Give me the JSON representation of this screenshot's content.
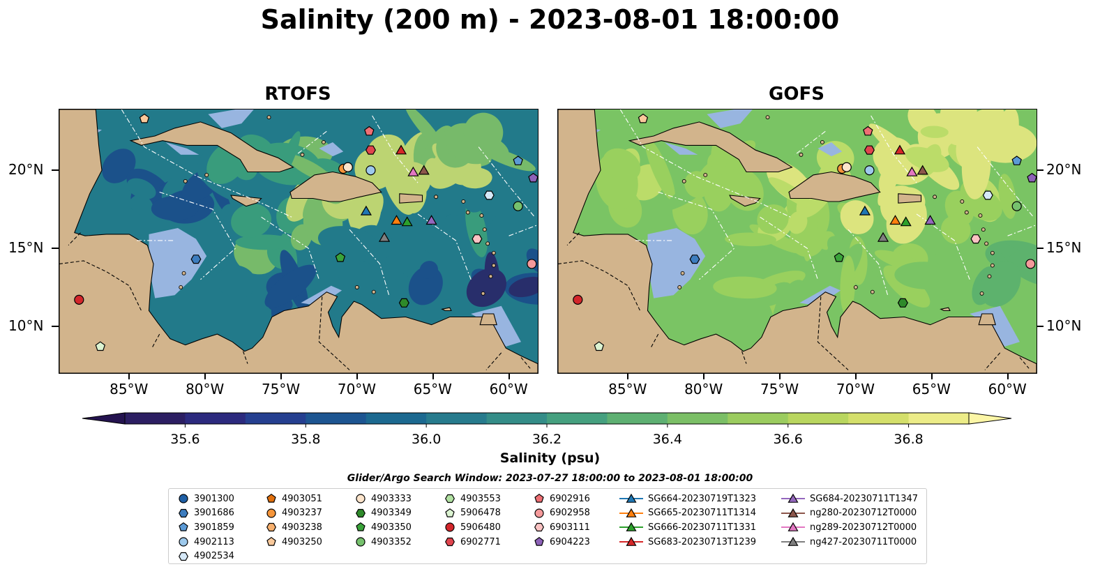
{
  "figure": {
    "title": "Salinity (200 m) - 2023-08-01 18:00:00",
    "window_text": "Glider/Argo Search Window: 2023-07-27 18:00:00 to 2023-08-01 18:00:00"
  },
  "panels": [
    {
      "title": "RTOFS",
      "palette": [
        "#2a2166",
        "#1a4a8a",
        "#227a8a",
        "#3ea27a",
        "#86c665",
        "#d8e46e"
      ]
    },
    {
      "title": "GOFS",
      "palette": [
        "#3f8f82",
        "#58b06f",
        "#7ac464",
        "#9fd35e",
        "#c7e16b",
        "#eeea83"
      ]
    }
  ],
  "map_extent": {
    "lon": [
      -89.6,
      -58.1
    ],
    "lat": [
      7,
      23.9
    ]
  },
  "axes": {
    "lon_ticks": [
      {
        "value": -85,
        "label": "85°W"
      },
      {
        "value": -80,
        "label": "80°W"
      },
      {
        "value": -75,
        "label": "75°W"
      },
      {
        "value": -70,
        "label": "70°W"
      },
      {
        "value": -65,
        "label": "65°W"
      },
      {
        "value": -60,
        "label": "60°W"
      }
    ],
    "lat_ticks": [
      {
        "value": 20,
        "label": "20°N"
      },
      {
        "value": 15,
        "label": "15°N"
      },
      {
        "value": 10,
        "label": "10°N"
      }
    ]
  },
  "colorbar": {
    "label": "Salinity (psu)",
    "vmin": 35.5,
    "vmax": 36.9,
    "step": 0.1,
    "ticks": [
      35.6,
      35.8,
      36.0,
      36.2,
      36.4,
      36.6,
      36.8
    ],
    "tick_labels": [
      "35.6",
      "35.8",
      "36.0",
      "36.2",
      "36.4",
      "36.6",
      "36.8"
    ],
    "colors": [
      "#2c1e62",
      "#2c2a7e",
      "#253f90",
      "#1d5591",
      "#1c6990",
      "#277b8d",
      "#348d88",
      "#45a07f",
      "#5eb072",
      "#7bbf66",
      "#9bcc5f",
      "#b9d65f",
      "#d4df6b",
      "#ecec88"
    ],
    "under_color": "#24134f",
    "over_color": "#fcf6a6"
  },
  "colors": {
    "land": "#d2b48c",
    "shelf": "#98b5e0",
    "deep": "#2a2166"
  },
  "legend": {
    "items": [
      {
        "label": "3901300",
        "marker": "circle",
        "color": "#1f5fa5"
      },
      {
        "label": "3901686",
        "marker": "hexagon",
        "color": "#3d7dbf"
      },
      {
        "label": "3901859",
        "marker": "pentagon",
        "color": "#5b9ad6"
      },
      {
        "label": "4902113",
        "marker": "circle",
        "color": "#9dc9ec"
      },
      {
        "label": "4902534",
        "marker": "hexagon",
        "color": "#d6e9f8"
      },
      {
        "label": "4903051",
        "marker": "pentagon",
        "color": "#e1700e"
      },
      {
        "label": "4903237",
        "marker": "circle",
        "color": "#f5953a"
      },
      {
        "label": "4903238",
        "marker": "hexagon",
        "color": "#f7b06e"
      },
      {
        "label": "4903250",
        "marker": "pentagon",
        "color": "#f9c99b"
      },
      {
        "label": "4903333",
        "marker": "circle",
        "color": "#fce4cb"
      },
      {
        "label": "4903349",
        "marker": "hexagon",
        "color": "#2e8a2a"
      },
      {
        "label": "4903350",
        "marker": "pentagon",
        "color": "#3aa33a"
      },
      {
        "label": "4903352",
        "marker": "circle",
        "color": "#76c16d"
      },
      {
        "label": "4903553",
        "marker": "hexagon",
        "color": "#b1e1a2"
      },
      {
        "label": "5906478",
        "marker": "pentagon",
        "color": "#dcf4d2"
      },
      {
        "label": "5906480",
        "marker": "circle",
        "color": "#d3262b"
      },
      {
        "label": "6902771",
        "marker": "hexagon",
        "color": "#e0454e"
      },
      {
        "label": "6902916",
        "marker": "pentagon",
        "color": "#ee6f74"
      },
      {
        "label": "6902958",
        "marker": "circle",
        "color": "#f59a9b"
      },
      {
        "label": "6903111",
        "marker": "hexagon",
        "color": "#fac3c3"
      },
      {
        "label": "6904223",
        "marker": "pentagon",
        "color": "#8d62b8"
      },
      {
        "label": "SG664-20230719T1323",
        "marker": "triangle",
        "color": "#1f77b4"
      },
      {
        "label": "SG665-20230711T1314",
        "marker": "triangle",
        "color": "#ff7f0e"
      },
      {
        "label": "SG666-20230711T1331",
        "marker": "triangle",
        "color": "#2ca02c"
      },
      {
        "label": "SG683-20230713T1239",
        "marker": "triangle",
        "color": "#d62728"
      },
      {
        "label": "SG684-20230711T1347",
        "marker": "triangle",
        "color": "#9467bd"
      },
      {
        "label": "ng280-20230712T0000",
        "marker": "triangle",
        "color": "#8c564b"
      },
      {
        "label": "ng289-20230712T0000",
        "marker": "triangle",
        "color": "#e377c2"
      },
      {
        "label": "ng427-20230711T0000",
        "marker": "triangle",
        "color": "#7f7f7f"
      }
    ]
  },
  "observations": [
    {
      "id": "4903250",
      "lon": -84.0,
      "lat": 23.3
    },
    {
      "id": "6902916",
      "lon": -69.2,
      "lat": 22.5
    },
    {
      "id": "6902771",
      "lon": -69.1,
      "lat": 21.3
    },
    {
      "id": "SG683-20230713T1239",
      "lon": -67.1,
      "lat": 21.3
    },
    {
      "id": "4903237",
      "lon": -70.9,
      "lat": 20.1
    },
    {
      "id": "4903333",
      "lon": -70.6,
      "lat": 20.2
    },
    {
      "id": "4902113",
      "lon": -69.1,
      "lat": 20.0
    },
    {
      "id": "ng289-20230712T0000",
      "lon": -66.3,
      "lat": 19.9
    },
    {
      "id": "ng280-20230712T0000",
      "lon": -65.6,
      "lat": 20.0
    },
    {
      "id": "3901859",
      "lon": -59.4,
      "lat": 20.6
    },
    {
      "id": "6904223",
      "lon": -58.4,
      "lat": 19.5
    },
    {
      "id": "4902534",
      "lon": -61.3,
      "lat": 18.4
    },
    {
      "id": "4903352",
      "lon": -59.4,
      "lat": 17.7
    },
    {
      "id": "SG664-20230719T1323",
      "lon": -69.4,
      "lat": 17.4
    },
    {
      "id": "SG665-20230711T1314",
      "lon": -67.4,
      "lat": 16.8
    },
    {
      "id": "SG666-20230711T1331",
      "lon": -66.7,
      "lat": 16.7
    },
    {
      "id": "SG684-20230711T1347",
      "lon": -65.1,
      "lat": 16.8
    },
    {
      "id": "ng427-20230711T0000",
      "lon": -68.2,
      "lat": 15.7
    },
    {
      "id": "6903111",
      "lon": -62.1,
      "lat": 15.6
    },
    {
      "id": "4903350",
      "lon": -71.1,
      "lat": 14.4
    },
    {
      "id": "3901686",
      "lon": -80.6,
      "lat": 14.3
    },
    {
      "id": "6902958",
      "lon": -58.5,
      "lat": 14.0
    },
    {
      "id": "5906480",
      "lon": -88.3,
      "lat": 11.7
    },
    {
      "id": "4903349",
      "lon": -66.9,
      "lat": 11.5
    },
    {
      "id": "5906478",
      "lon": -86.9,
      "lat": 8.7
    }
  ]
}
